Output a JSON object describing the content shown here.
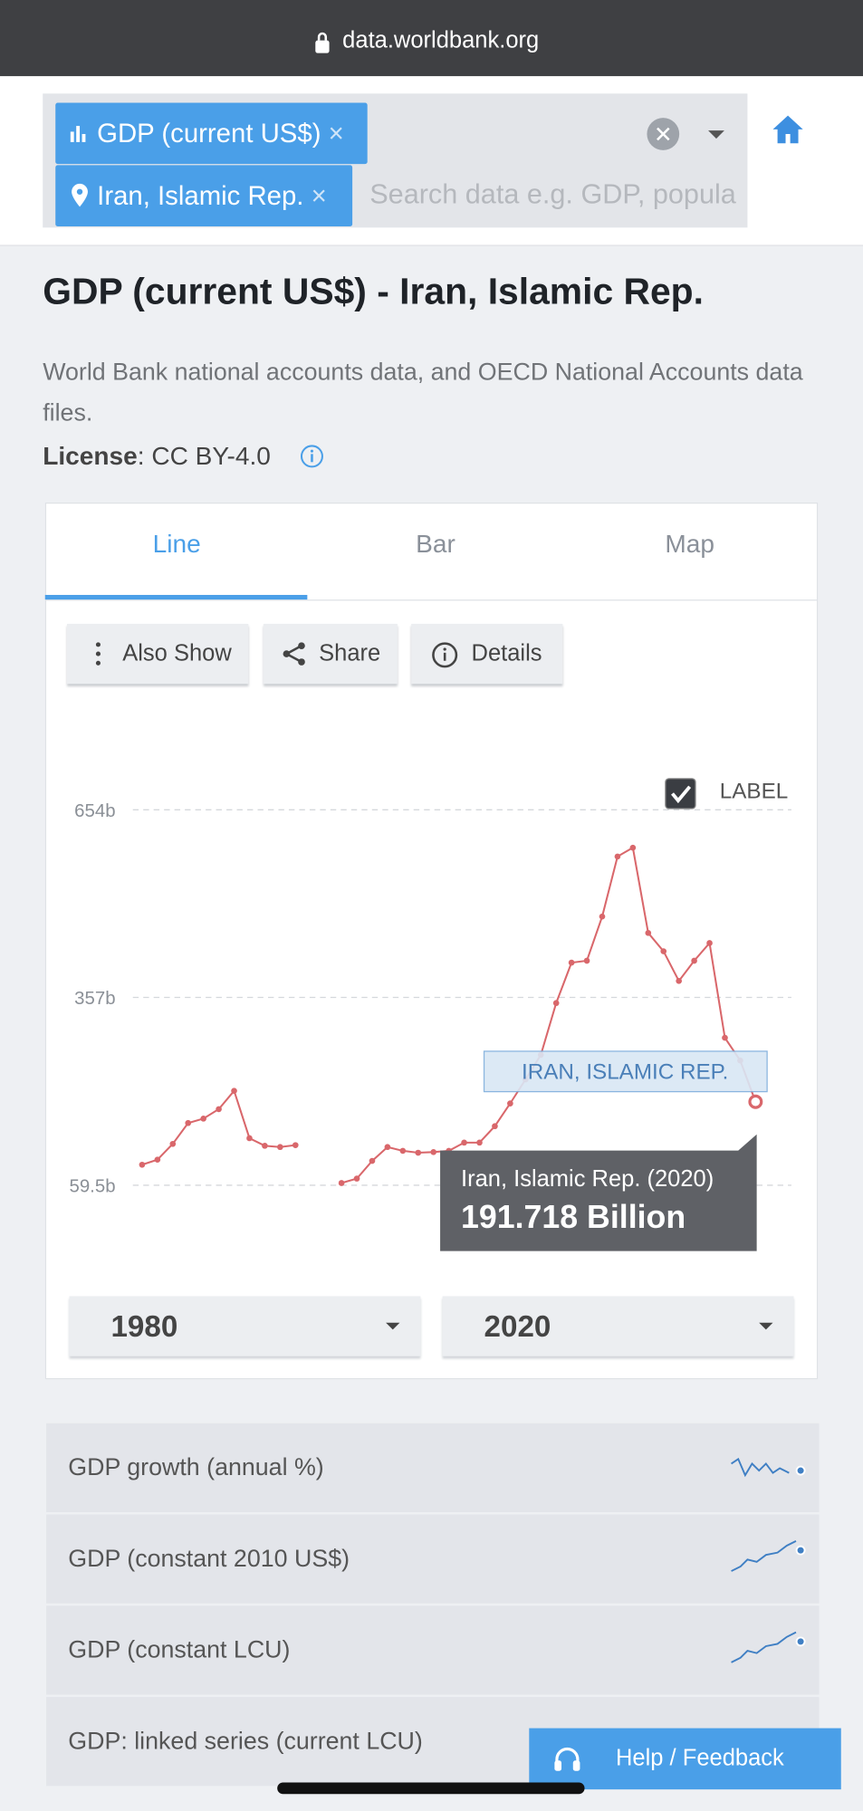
{
  "status_bar": {
    "url": "data.worldbank.org"
  },
  "search": {
    "chips": [
      "GDP (current US$)",
      "Iran, Islamic Rep."
    ],
    "placeholder": "Search data e.g. GDP, popula"
  },
  "header": {
    "title": "GDP (current US$) - Iran, Islamic Rep.",
    "source": "World Bank national accounts data, and OECD National Accounts data files.",
    "license_label": "License",
    "license_value": ": CC BY-4.0"
  },
  "tabs": [
    "Line",
    "Bar",
    "Map"
  ],
  "actions": [
    "Also Show",
    "Share",
    "Details"
  ],
  "chart": {
    "type": "line",
    "label_toggle": "LABEL",
    "x": [
      1980,
      1981,
      1982,
      1983,
      1984,
      1985,
      1986,
      1987,
      1988,
      1989,
      1990,
      1991,
      1992,
      1993,
      1994,
      1995,
      1996,
      1997,
      1998,
      1999,
      2000,
      2001,
      2002,
      2003,
      2004,
      2005,
      2006,
      2007,
      2008,
      2009,
      2010,
      2011,
      2012,
      2013,
      2014,
      2015,
      2016,
      2017,
      2018,
      2019,
      2020
    ],
    "series": [
      {
        "name": "IRAN, ISLAMIC REP.",
        "color": "#d9676b",
        "values": [
          92,
          100,
          125,
          158,
          165,
          180,
          209,
          134,
          122,
          120,
          123,
          null,
          null,
          63,
          70,
          98,
          120,
          114,
          111,
          112,
          114,
          127,
          127,
          153,
          189,
          227,
          266,
          348,
          412,
          415,
          485,
          580,
          594,
          459,
          430,
          383,
          415,
          443,
          293,
          257,
          191.718
        ]
      }
    ],
    "xlim": [
      1980,
      2020
    ],
    "ylim": [
      59.5,
      654
    ],
    "yticks": [
      {
        "value": 59.5,
        "label": "59.5b"
      },
      {
        "value": 357,
        "label": "357b"
      },
      {
        "value": 654,
        "label": "654b"
      }
    ],
    "grid": true,
    "tooltip": {
      "title": "Iran, Islamic Rep. (2020)",
      "value": "191.718 Billion"
    }
  },
  "year_range": [
    1980,
    2020
  ],
  "related": [
    "GDP growth (annual %)",
    "GDP (constant 2010 US$)",
    "GDP (constant LCU)",
    "GDP: linked series (current LCU)"
  ],
  "help": "Help / Feedback"
}
